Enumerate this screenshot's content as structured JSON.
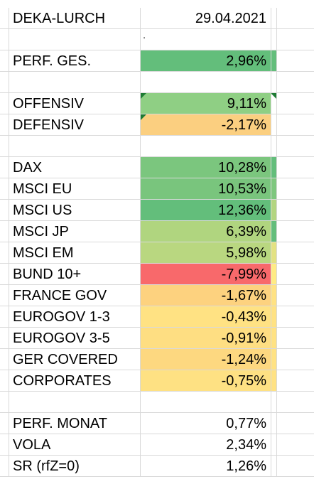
{
  "header": {
    "name": "DEKA-LURCH",
    "date": "29.04.2021"
  },
  "rows": [
    {
      "label": "PERF. GES.",
      "value": "2,96%",
      "color": "#63be7b"
    },
    {
      "label": "OFFENSIV",
      "value": "9,11%",
      "color": "#8fcf84"
    },
    {
      "label": "DEFENSIV",
      "value": "-2,17%",
      "color": "#fbcf80"
    },
    {
      "label": "DAX",
      "value": "10,28%",
      "color": "#7bc67e"
    },
    {
      "label": "MSCI EU",
      "value": "10,53%",
      "color": "#79c57d"
    },
    {
      "label": "MSCI US",
      "value": "12,36%",
      "color": "#63be7b"
    },
    {
      "label": "MSCI JP",
      "value": "6,39%",
      "color": "#b0d57f"
    },
    {
      "label": "MSCI EM",
      "value": "5,98%",
      "color": "#b9d780"
    },
    {
      "label": "BUND 10+",
      "value": "-7,99%",
      "color": "#f8696b"
    },
    {
      "label": "FRANCE GOV",
      "value": "-1,67%",
      "color": "#fdd27f"
    },
    {
      "label": "EUROGOV 1-3",
      "value": "-0,43%",
      "color": "#ffe283"
    },
    {
      "label": "EUROGOV 3-5",
      "value": "-0,91%",
      "color": "#fede82"
    },
    {
      "label": "GER COVERED",
      "value": "-1,24%",
      "color": "#fdd880"
    },
    {
      "label": "CORPORATES",
      "value": "-0,75%",
      "color": "#fee183"
    },
    {
      "label": "PERF. MONAT",
      "value": "0,77%"
    },
    {
      "label": "VOLA",
      "value": "2,34%"
    },
    {
      "label": "SR (rfZ=0)",
      "value": "1,26%"
    }
  ],
  "colors": {
    "grid_line": "#d9d9d9",
    "col_e_green": "#63be7b",
    "col_e_lightgreen": "#9dd17f",
    "col_e_yellow": "#ffe283"
  },
  "icons": {
    "comment_marker": "comment-indicator-icon"
  }
}
